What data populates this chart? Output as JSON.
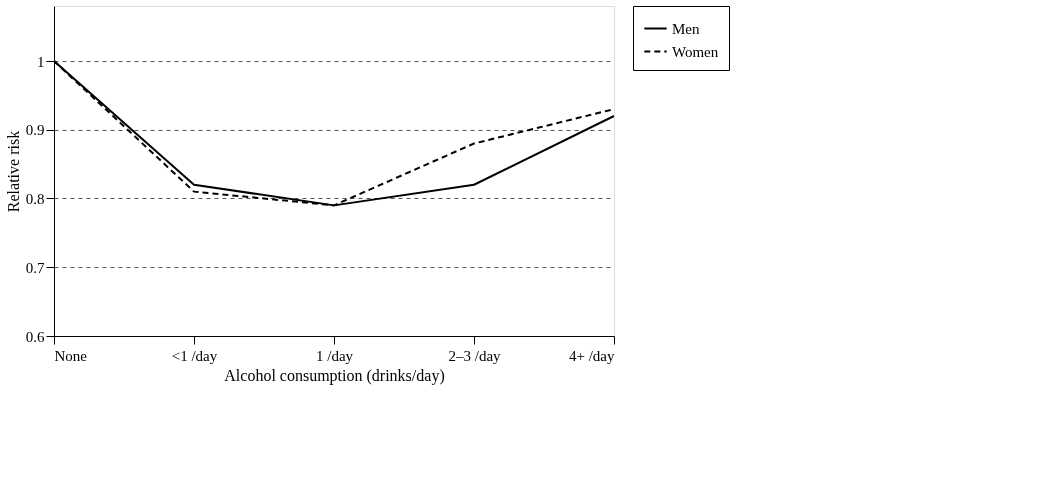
{
  "chart_data": {
    "type": "line",
    "xlabel": "Alcohol consumption (drinks/day)",
    "ylabel": "Relative risk",
    "categories": [
      "None",
      "<1 /day",
      "1 /day",
      "2–3 /day",
      "4+ /day"
    ],
    "series": [
      {
        "name": "Men",
        "color": "#000000",
        "line_style": "solid",
        "values": [
          1,
          0.82,
          0.79,
          0.82,
          0.92
        ]
      },
      {
        "name": "Women",
        "color": "#000000",
        "line_style": "dashed",
        "values": [
          1,
          0.81,
          0.79,
          0.88,
          0.93
        ]
      }
    ],
    "ylim": [
      0.6,
      1.08
    ],
    "yticks": [
      0.6,
      0.7,
      0.8,
      0.9,
      1
    ],
    "grid": "y",
    "legend": "right",
    "marker": "none"
  }
}
